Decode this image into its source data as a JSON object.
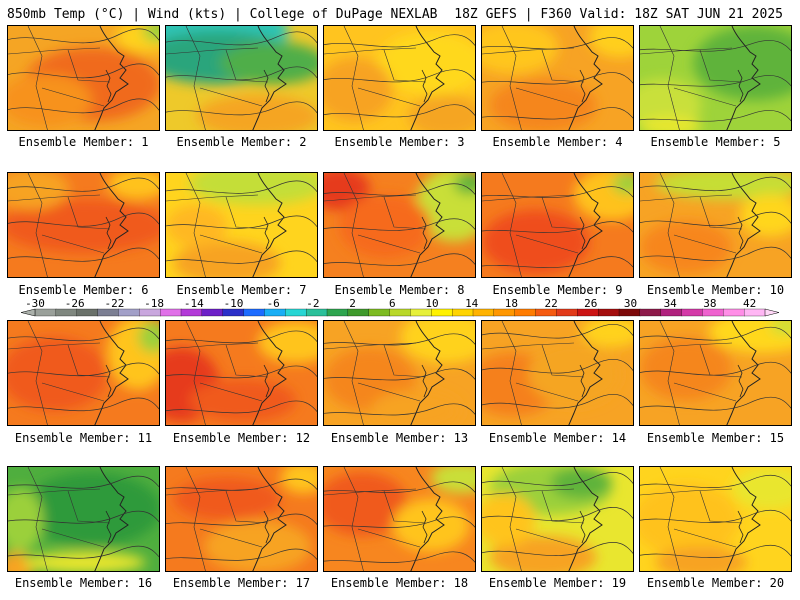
{
  "header": {
    "left": "850mb Temp (°C) | Wind (kts) | College of DuPage NEXLAB",
    "right": "18Z GEFS | F360 Valid: 18Z SAT JUN 21 2025"
  },
  "colorbar": {
    "labels": [
      "-30",
      "-26",
      "-22",
      "-18",
      "-14",
      "-10",
      "-6",
      "-2",
      "2",
      "6",
      "10",
      "14",
      "18",
      "22",
      "26",
      "30",
      "34",
      "38",
      "42"
    ],
    "colors": [
      "#9aa09a",
      "#7f877f",
      "#6a716a",
      "#7c7f93",
      "#a2a0c8",
      "#c9a7de",
      "#e070e8",
      "#b33ad8",
      "#6d20c8",
      "#2b2fc8",
      "#1d6bff",
      "#19aef5",
      "#27d6d4",
      "#2bc09a",
      "#2ea54f",
      "#3f9a2c",
      "#7dbb22",
      "#b9d829",
      "#e6f03a",
      "#fff200",
      "#ffd400",
      "#ffb300",
      "#ff9700",
      "#ff7c00",
      "#f55a10",
      "#e23a1a",
      "#cc1414",
      "#a40d0d",
      "#7d0909",
      "#8d1a4a",
      "#b0217e",
      "#d43aa8",
      "#ef62cf",
      "#ff8ee7",
      "#ffb6f4"
    ]
  },
  "members": [
    {
      "label": "Ensemble Member: 1",
      "base": "#f5a524",
      "blobs": [
        [
          "#f06a1e",
          0.55,
          0.55,
          0.45,
          0.35
        ],
        [
          "#f7921f",
          0.25,
          0.7,
          0.3,
          0.25
        ],
        [
          "#ffd21e",
          0.9,
          0.1,
          0.2,
          0.15
        ],
        [
          "#9bd03a",
          0.98,
          0.05,
          0.1,
          0.1
        ]
      ]
    },
    {
      "label": "Ensemble Member: 2",
      "base": "#eec92a",
      "blobs": [
        [
          "#2fc4b5",
          0.3,
          0.05,
          0.5,
          0.3
        ],
        [
          "#2aa57b",
          0.35,
          0.3,
          0.5,
          0.25
        ],
        [
          "#4fae4a",
          0.7,
          0.35,
          0.35,
          0.2
        ],
        [
          "#f5a524",
          0.6,
          0.85,
          0.4,
          0.2
        ]
      ]
    },
    {
      "label": "Ensemble Member: 3",
      "base": "#ffc41f",
      "blobs": [
        [
          "#ffd81d",
          0.7,
          0.35,
          0.35,
          0.3
        ],
        [
          "#f7a324",
          0.2,
          0.6,
          0.25,
          0.3
        ],
        [
          "#f5a524",
          0.8,
          0.85,
          0.25,
          0.2
        ]
      ]
    },
    {
      "label": "Ensemble Member: 4",
      "base": "#f7a324",
      "blobs": [
        [
          "#ffc61f",
          0.2,
          0.2,
          0.3,
          0.25
        ],
        [
          "#f5861f",
          0.4,
          0.75,
          0.35,
          0.25
        ],
        [
          "#ffcf1d",
          0.9,
          0.1,
          0.2,
          0.2
        ]
      ]
    },
    {
      "label": "Ensemble Member: 5",
      "base": "#9ed33a",
      "blobs": [
        [
          "#5fb33a",
          0.75,
          0.35,
          0.4,
          0.35
        ],
        [
          "#c9e03a",
          0.15,
          0.75,
          0.25,
          0.25
        ],
        [
          "#e7e72f",
          0.2,
          0.95,
          0.2,
          0.1
        ]
      ]
    },
    {
      "label": "Ensemble Member: 6",
      "base": "#f57a1e",
      "blobs": [
        [
          "#f05a1c",
          0.5,
          0.5,
          0.55,
          0.25
        ],
        [
          "#f7a324",
          0.15,
          0.15,
          0.25,
          0.2
        ],
        [
          "#ffc21f",
          0.85,
          0.1,
          0.2,
          0.15
        ]
      ]
    },
    {
      "label": "Ensemble Member: 7",
      "base": "#ffd41e",
      "blobs": [
        [
          "#c4de37",
          0.6,
          0.1,
          0.45,
          0.2
        ],
        [
          "#f7a324",
          0.4,
          0.85,
          0.35,
          0.2
        ],
        [
          "#ffb822",
          0.2,
          0.5,
          0.2,
          0.2
        ]
      ]
    },
    {
      "label": "Ensemble Member: 8",
      "base": "#f5801f",
      "blobs": [
        [
          "#e63a1b",
          0.1,
          0.15,
          0.2,
          0.2
        ],
        [
          "#c9df37",
          0.85,
          0.3,
          0.25,
          0.35
        ],
        [
          "#5fb33a",
          0.95,
          0.1,
          0.1,
          0.1
        ],
        [
          "#f66a1e",
          0.4,
          0.5,
          0.3,
          0.3
        ]
      ]
    },
    {
      "label": "Ensemble Member: 9",
      "base": "#f57a1e",
      "blobs": [
        [
          "#ef4e1c",
          0.35,
          0.65,
          0.35,
          0.3
        ],
        [
          "#ffc21f",
          0.85,
          0.2,
          0.25,
          0.25
        ],
        [
          "#9bd03a",
          0.95,
          0.1,
          0.1,
          0.1
        ]
      ]
    },
    {
      "label": "Ensemble Member: 10",
      "base": "#f7a324",
      "blobs": [
        [
          "#c6de36",
          0.6,
          0.1,
          0.5,
          0.15
        ],
        [
          "#f7861f",
          0.3,
          0.7,
          0.3,
          0.25
        ],
        [
          "#ffd61e",
          0.85,
          0.4,
          0.2,
          0.2
        ]
      ]
    },
    {
      "label": "Ensemble Member: 11",
      "base": "#f57a1e",
      "blobs": [
        [
          "#f05a1c",
          0.3,
          0.5,
          0.35,
          0.35
        ],
        [
          "#ffc41f",
          0.85,
          0.3,
          0.2,
          0.35
        ],
        [
          "#9bd03a",
          0.95,
          0.15,
          0.1,
          0.15
        ]
      ]
    },
    {
      "label": "Ensemble Member: 12",
      "base": "#f57a1e",
      "blobs": [
        [
          "#e63a1b",
          0.1,
          0.6,
          0.25,
          0.35
        ],
        [
          "#f05a1c",
          0.5,
          0.75,
          0.35,
          0.2
        ],
        [
          "#ffc41f",
          0.85,
          0.2,
          0.25,
          0.2
        ]
      ]
    },
    {
      "label": "Ensemble Member: 13",
      "base": "#f7a324",
      "blobs": [
        [
          "#ffd21e",
          0.8,
          0.15,
          0.3,
          0.25
        ],
        [
          "#f5861f",
          0.3,
          0.55,
          0.3,
          0.3
        ],
        [
          "#f7a324",
          0.6,
          0.85,
          0.3,
          0.2
        ]
      ]
    },
    {
      "label": "Ensemble Member: 14",
      "base": "#f7a324",
      "blobs": [
        [
          "#f5801f",
          0.2,
          0.6,
          0.3,
          0.3
        ],
        [
          "#ffd21e",
          0.85,
          0.1,
          0.2,
          0.15
        ],
        [
          "#f5a524",
          0.6,
          0.5,
          0.3,
          0.3
        ]
      ]
    },
    {
      "label": "Ensemble Member: 15",
      "base": "#f7a324",
      "blobs": [
        [
          "#ffd81d",
          0.8,
          0.1,
          0.35,
          0.2
        ],
        [
          "#f5861f",
          0.3,
          0.45,
          0.3,
          0.3
        ],
        [
          "#c9df37",
          0.95,
          0.05,
          0.1,
          0.08
        ]
      ]
    },
    {
      "label": "Ensemble Member: 16",
      "base": "#4fae3e",
      "blobs": [
        [
          "#2f9a3a",
          0.55,
          0.4,
          0.45,
          0.35
        ],
        [
          "#9bd03a",
          0.08,
          0.5,
          0.15,
          0.3
        ],
        [
          "#f7a324",
          0.05,
          0.95,
          0.12,
          0.15
        ],
        [
          "#e9e62f",
          0.5,
          0.9,
          0.4,
          0.1
        ]
      ]
    },
    {
      "label": "Ensemble Member: 17",
      "base": "#f57a1e",
      "blobs": [
        [
          "#f05a1c",
          0.4,
          0.3,
          0.35,
          0.2
        ],
        [
          "#f7a324",
          0.6,
          0.75,
          0.35,
          0.25
        ],
        [
          "#ffc41f",
          0.9,
          0.1,
          0.15,
          0.15
        ]
      ]
    },
    {
      "label": "Ensemble Member: 18",
      "base": "#f7861f",
      "blobs": [
        [
          "#f05a1c",
          0.25,
          0.35,
          0.3,
          0.3
        ],
        [
          "#c9df37",
          0.9,
          0.1,
          0.2,
          0.15
        ],
        [
          "#ffc41f",
          0.7,
          0.55,
          0.25,
          0.25
        ]
      ]
    },
    {
      "label": "Ensemble Member: 19",
      "base": "#e9e62f",
      "blobs": [
        [
          "#9bd03a",
          0.45,
          0.2,
          0.4,
          0.25
        ],
        [
          "#5fb33a",
          0.65,
          0.15,
          0.2,
          0.15
        ],
        [
          "#f7a324",
          0.4,
          0.85,
          0.35,
          0.2
        ],
        [
          "#ffc41f",
          0.15,
          0.5,
          0.2,
          0.25
        ]
      ]
    },
    {
      "label": "Ensemble Member: 20",
      "base": "#ffd41e",
      "blobs": [
        [
          "#ffc21f",
          0.3,
          0.5,
          0.35,
          0.35
        ],
        [
          "#f7a324",
          0.4,
          0.9,
          0.3,
          0.15
        ],
        [
          "#e9e62f",
          0.85,
          0.2,
          0.25,
          0.2
        ]
      ]
    }
  ]
}
